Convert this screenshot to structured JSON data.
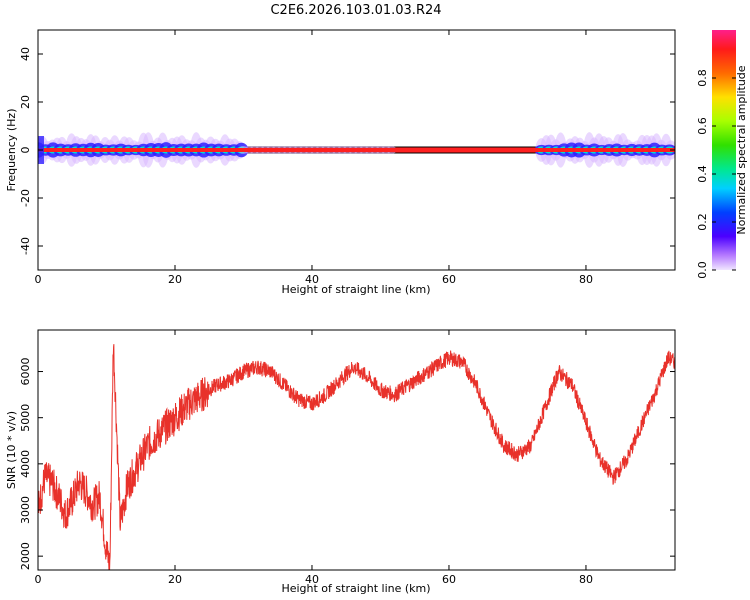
{
  "title": "C2E6.2026.103.01.03.R24",
  "chart_data": [
    {
      "type": "heatmap",
      "xlabel": "Height of straight line (km)",
      "ylabel": "Frequency (Hz)",
      "xlim": [
        0,
        93
      ],
      "ylim": [
        -50,
        50
      ],
      "xticks": [
        "0",
        "20",
        "40",
        "60",
        "80"
      ],
      "yticks": [
        "40",
        "20",
        "0",
        "-20",
        "-40"
      ],
      "band_center_hz": 0,
      "colorbar": {
        "label": "Normalized spectral amplitude",
        "range": [
          0,
          1
        ],
        "ticks": [
          "0.0",
          "0.2",
          "0.4",
          "0.6",
          "0.8"
        ]
      }
    },
    {
      "type": "line",
      "xlabel": "Height of straight line (km)",
      "ylabel": "SNR (10 * v/v)",
      "xlim": [
        0,
        93
      ],
      "ylim": [
        1700,
        6900
      ],
      "xticks": [
        "0",
        "20",
        "40",
        "60",
        "80"
      ],
      "yticks": [
        "6000",
        "5000",
        "4000",
        "3000",
        "2000"
      ],
      "color": "#e8312a",
      "x": [
        0,
        1,
        2,
        3,
        4,
        5,
        6,
        7,
        8,
        9,
        10,
        10.5,
        11,
        12,
        13,
        14,
        15,
        16,
        18,
        20,
        22,
        24,
        26,
        28,
        30,
        32,
        34,
        36,
        38,
        40,
        42,
        44,
        46,
        48,
        50,
        52,
        54,
        56,
        58,
        60,
        62,
        64,
        66,
        68,
        70,
        72,
        74,
        76,
        78,
        80,
        82,
        84,
        86,
        88,
        90,
        92,
        93
      ],
      "values": [
        3000,
        3700,
        3600,
        3300,
        2900,
        3200,
        3600,
        3400,
        3100,
        3300,
        2100,
        1800,
        6700,
        2700,
        3500,
        3800,
        4100,
        4400,
        4700,
        5000,
        5300,
        5500,
        5700,
        5800,
        6000,
        6100,
        6000,
        5700,
        5400,
        5300,
        5500,
        5800,
        6100,
        5900,
        5600,
        5500,
        5700,
        5900,
        6100,
        6300,
        6200,
        5700,
        5000,
        4400,
        4200,
        4400,
        5200,
        6000,
        5700,
        4900,
        4100,
        3700,
        4100,
        4800,
        5500,
        6300,
        6200
      ]
    }
  ]
}
